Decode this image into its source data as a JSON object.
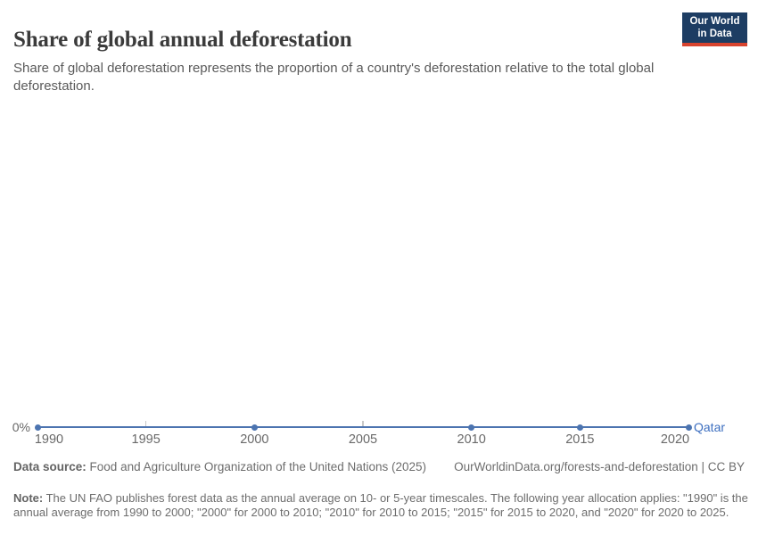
{
  "header": {
    "title": "Share of global annual deforestation",
    "subtitle": "Share of global deforestation represents the proportion of a country's deforestation relative to the total global deforestation.",
    "logo": {
      "line1": "Our World",
      "line2": "in Data",
      "bg_color": "#1d3d63",
      "accent_color": "#d8432e"
    }
  },
  "chart_data": {
    "type": "line",
    "title": "Share of global annual deforestation",
    "xlabel": "",
    "ylabel": "",
    "xlim": [
      1990,
      2020
    ],
    "ylim": [
      0,
      0
    ],
    "grid": false,
    "legend_position": "end-of-line-label",
    "x_ticks": [
      1990,
      1995,
      2000,
      2005,
      2010,
      2015,
      2020
    ],
    "y_axis": {
      "zero_label": "0%"
    },
    "series": [
      {
        "name": "Qatar",
        "color": "#4c74b0",
        "label_color": "#3d6fc0",
        "x": [
          1990,
          2000,
          2010,
          2015,
          2020
        ],
        "values": [
          0,
          0,
          0,
          0,
          0
        ],
        "unit": "%"
      }
    ]
  },
  "footer": {
    "data_source_label": "Data source:",
    "data_source": "Food and Agriculture Organization of the United Nations (2025)",
    "attribution": "OurWorldinData.org/forests-and-deforestation | CC BY",
    "note_label": "Note:",
    "note": "The UN FAO publishes forest data as the annual average on 10- or 5-year timescales. The following year allocation applies: \"1990\" is the annual average from 1990 to 2000; \"2000\" for 2000 to 2010; \"2010\" for 2010 to 2015; \"2015\" for 2015 to 2020, and \"2020\" for 2020 to 2025."
  }
}
